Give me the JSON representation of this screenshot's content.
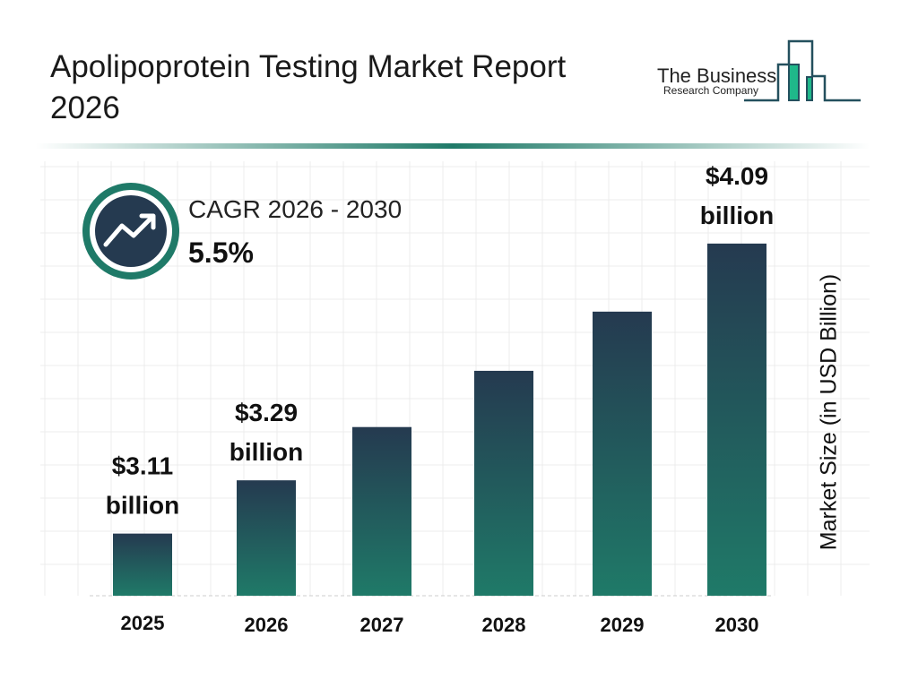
{
  "header": {
    "title": "Apolipoprotein Testing Market Report 2026",
    "logo_line1": "The Business",
    "logo_line2": "Research Company"
  },
  "cagr": {
    "label": "CAGR 2026 - 2030",
    "value": "5.5%",
    "icon": "trend-up-icon"
  },
  "colors": {
    "bar_top": "#253a50",
    "bar_bottom": "#1f7a68",
    "accent": "#1f7a68",
    "logo_green": "#1fb88a",
    "logo_dark": "#24505e"
  },
  "chart_data": {
    "type": "bar",
    "title": "",
    "xlabel": "",
    "ylabel": "Market Size (in USD Billion)",
    "categories": [
      "2025",
      "2026",
      "2027",
      "2028",
      "2029",
      "2030"
    ],
    "values": [
      3.11,
      3.29,
      3.47,
      3.66,
      3.86,
      4.09
    ],
    "data_labels": [
      {
        "index": 0,
        "line1": "$3.11",
        "line2": "billion"
      },
      {
        "index": 1,
        "line1": "$3.29",
        "line2": "billion"
      },
      {
        "index": 5,
        "line1": "$4.09",
        "line2": "billion"
      }
    ],
    "ylim": [
      2.9,
      4.35
    ],
    "grid": true
  }
}
